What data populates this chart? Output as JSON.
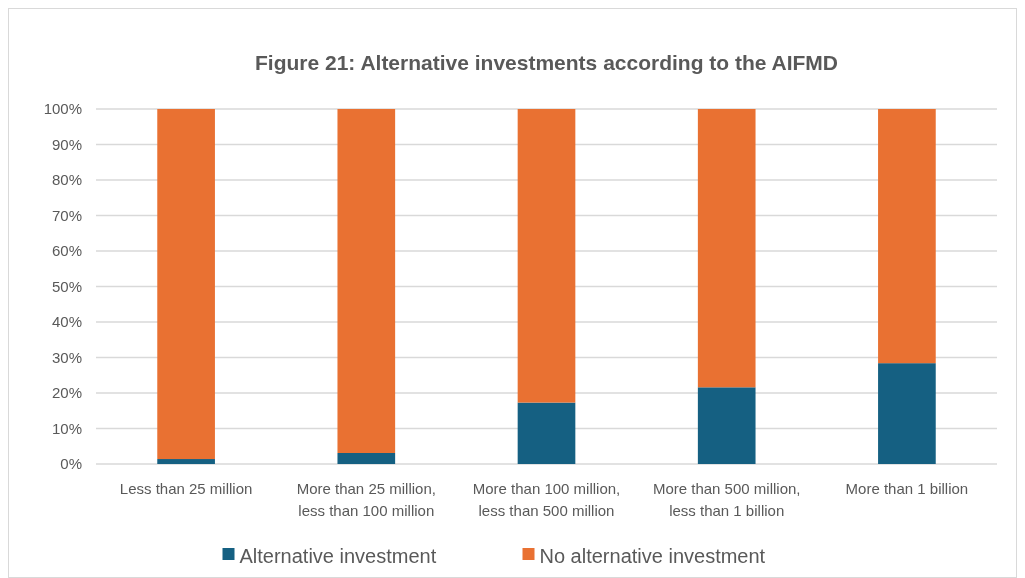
{
  "chart_data": {
    "type": "bar",
    "title": "Figure 21: Alternative investments according to the AIFMD",
    "categories": [
      "Less than 25 million",
      "More than 25 million, less than 100 million",
      "More than 100 million, less than 500 million",
      "More than 500 million, less than 1 billion",
      "More than 1 billion"
    ],
    "stacked": true,
    "series": [
      {
        "name": "Alternative investment",
        "color": "#156082",
        "values": [
          1.4,
          3.1,
          17.3,
          21.6,
          28.4
        ]
      },
      {
        "name": "No alternative investment",
        "color": "#e97132",
        "values": [
          98.6,
          96.9,
          82.7,
          78.4,
          71.6
        ]
      }
    ],
    "ylim": [
      0,
      100
    ],
    "yticks": [
      {
        "value": 0,
        "label": "0%"
      },
      {
        "value": 10,
        "label": "10%"
      },
      {
        "value": 20,
        "label": "20%"
      },
      {
        "value": 30,
        "label": "30%"
      },
      {
        "value": 40,
        "label": "40%"
      },
      {
        "value": 50,
        "label": "50%"
      },
      {
        "value": 60,
        "label": "60%"
      },
      {
        "value": 70,
        "label": "70%"
      },
      {
        "value": 80,
        "label": "80%"
      },
      {
        "value": 90,
        "label": "90%"
      },
      {
        "value": 100,
        "label": "100%"
      }
    ],
    "grid": "y",
    "legend": "bottom"
  }
}
